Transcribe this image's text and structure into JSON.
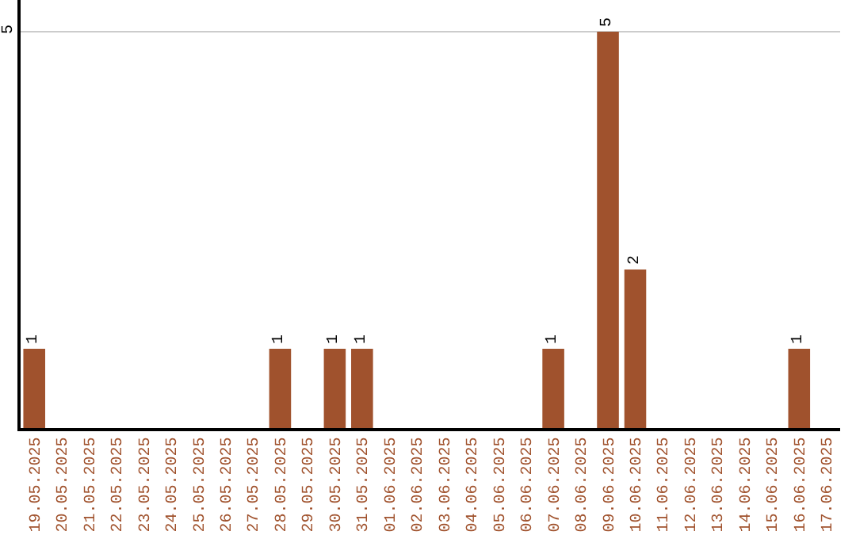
{
  "chart_data": {
    "type": "bar",
    "categories": [
      "19.05.2025",
      "20.05.2025",
      "21.05.2025",
      "22.05.2025",
      "23.05.2025",
      "24.05.2025",
      "25.05.2025",
      "26.05.2025",
      "27.05.2025",
      "28.05.2025",
      "29.05.2025",
      "30.05.2025",
      "31.05.2025",
      "01.06.2025",
      "02.06.2025",
      "03.06.2025",
      "04.06.2025",
      "05.06.2025",
      "06.06.2025",
      "07.06.2025",
      "08.06.2025",
      "09.06.2025",
      "10.06.2025",
      "11.06.2025",
      "12.06.2025",
      "13.06.2025",
      "14.06.2025",
      "15.06.2025",
      "16.06.2025",
      "17.06.2025"
    ],
    "values": [
      1,
      0,
      0,
      0,
      0,
      0,
      0,
      0,
      0,
      1,
      0,
      1,
      1,
      0,
      0,
      0,
      0,
      0,
      0,
      1,
      0,
      5,
      2,
      0,
      0,
      0,
      0,
      0,
      1,
      0
    ],
    "value_labels": [
      "1",
      null,
      null,
      null,
      null,
      null,
      null,
      null,
      null,
      "1",
      null,
      "1",
      "1",
      null,
      null,
      null,
      null,
      null,
      null,
      "1",
      null,
      "5",
      "2",
      null,
      null,
      null,
      null,
      null,
      "1",
      null
    ],
    "color": "#a0522d",
    "ylim": [
      0,
      5.4
    ],
    "yticks": [
      5
    ],
    "grid": "y"
  }
}
